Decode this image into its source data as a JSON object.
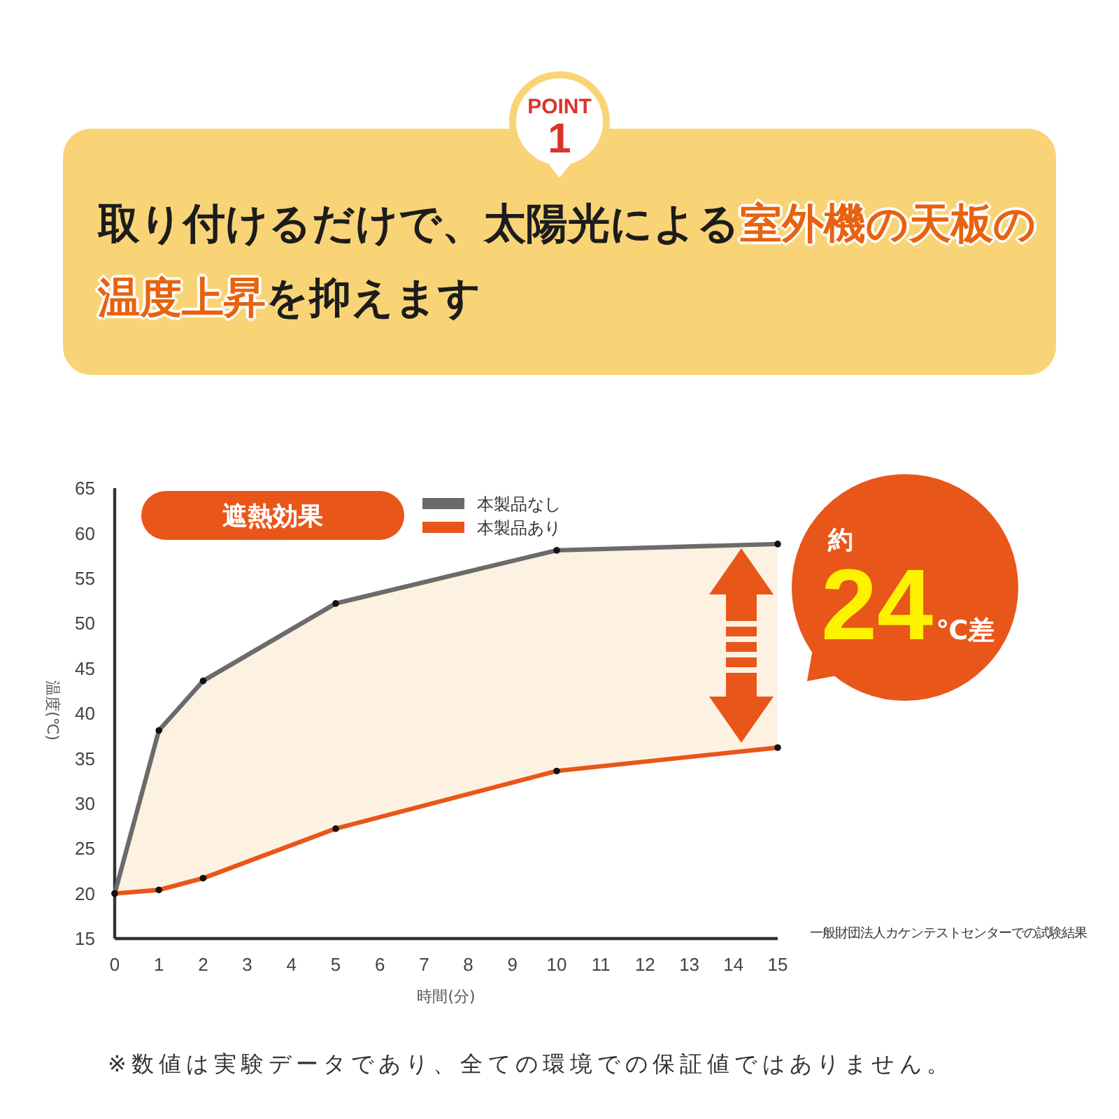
{
  "chart_data": {
    "type": "line",
    "title": "取り付けるだけで、太陽光による**室外機の天板の温度上昇**を抑えます",
    "subtitle": "遮熱効果",
    "xlabel": "時間(分)",
    "ylabel": "温度(℃)",
    "x": [
      0,
      1,
      2,
      5,
      10,
      15
    ],
    "series": [
      {
        "name": "本製品なし",
        "color": "#6b6b6b",
        "values": [
          20,
          38.1,
          43.6,
          52.2,
          58.1,
          58.8
        ]
      },
      {
        "name": "本製品あり",
        "color": "#e8561a",
        "values": [
          20,
          20.4,
          21.7,
          27.2,
          33.6,
          36.2
        ]
      }
    ],
    "xlim": [
      0,
      15
    ],
    "xticks": [
      0,
      1,
      2,
      3,
      4,
      5,
      6,
      7,
      8,
      9,
      10,
      11,
      12,
      13,
      14,
      15
    ],
    "ylim": [
      15,
      65
    ],
    "yticks": [
      15,
      20,
      25,
      30,
      35,
      40,
      45,
      50,
      55,
      60,
      65
    ],
    "legend": "top",
    "marker": "circle",
    "annotations": [
      "POINT 1",
      "約24℃差",
      "一般財団法人カケンテストセンターでの試験結果",
      "※数値は実験データであり、全ての環境での保証値ではありません。"
    ]
  }
}
